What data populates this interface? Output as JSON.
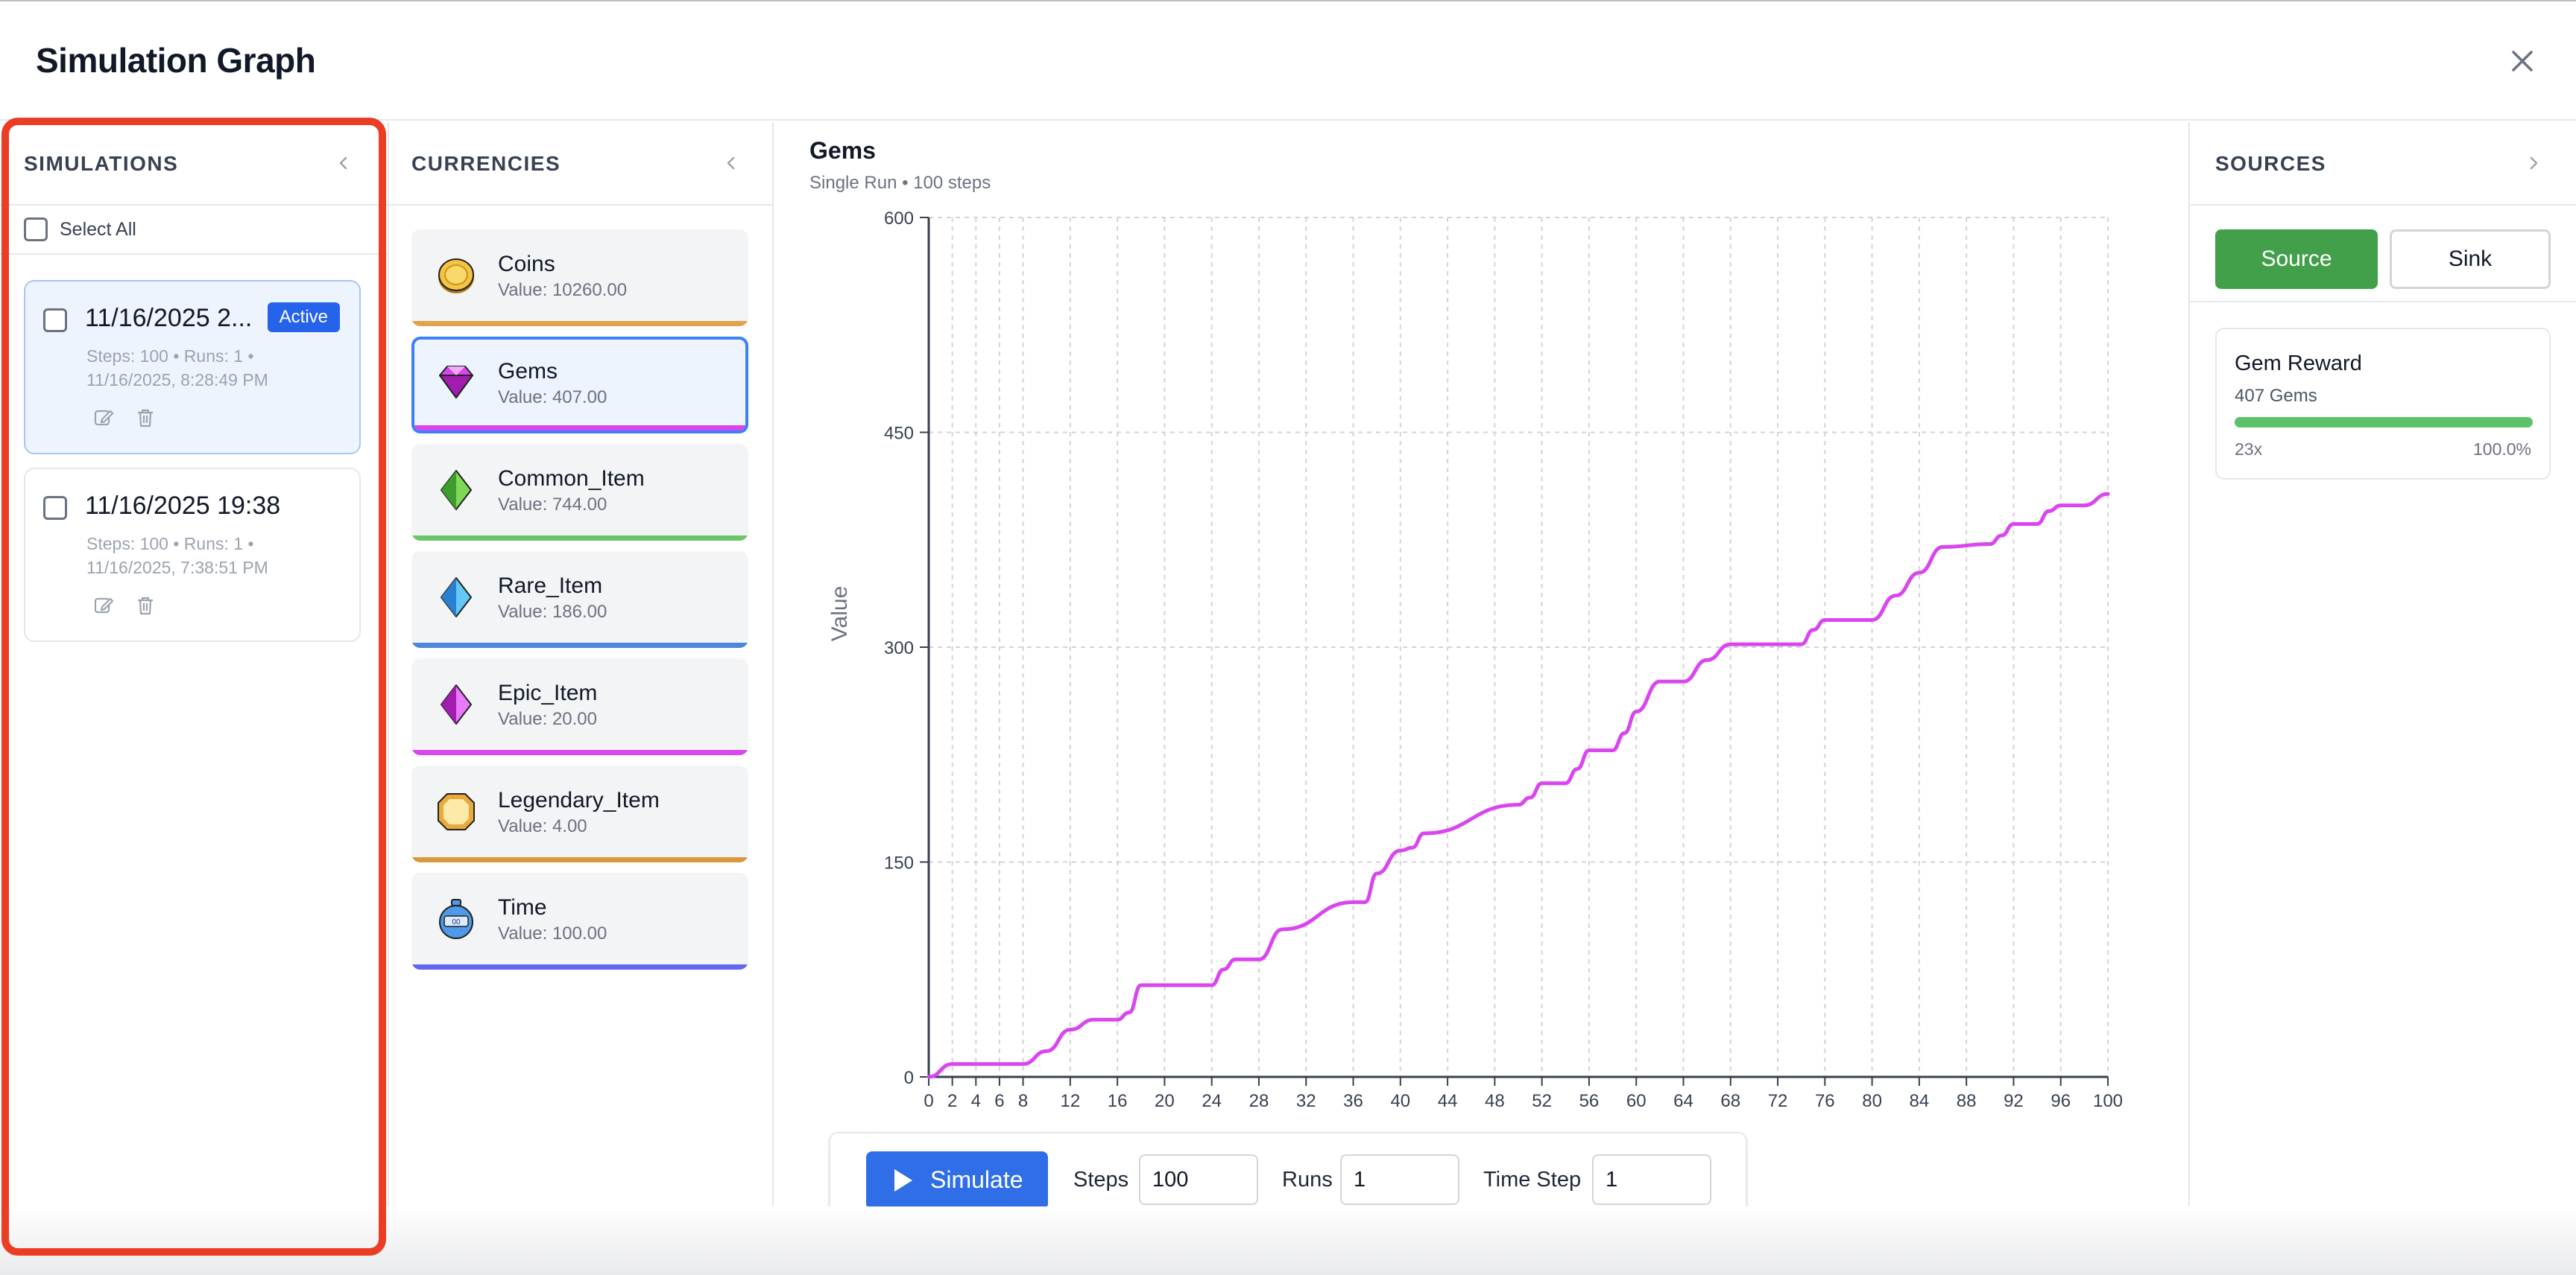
{
  "dialog": {
    "title": "Simulation Graph",
    "close_icon": "close-icon"
  },
  "simulations": {
    "heading": "SIMULATIONS",
    "select_all": "Select All",
    "items": [
      {
        "name": "11/16/2025 2...",
        "badge": "Active",
        "meta1": "Steps: 100 • Runs: 1 •",
        "meta2": "11/16/2025, 8:28:49 PM",
        "active": true
      },
      {
        "name": "11/16/2025 19:38",
        "badge": "",
        "meta1": "Steps: 100 • Runs: 1 •",
        "meta2": "11/16/2025, 7:38:51 PM",
        "active": false
      }
    ]
  },
  "currencies": {
    "heading": "CURRENCIES",
    "items": [
      {
        "name": "Coins",
        "value": "Value: 10260.00",
        "color": "#e0a24a",
        "icon": "coin-icon"
      },
      {
        "name": "Gems",
        "value": "Value: 407.00",
        "color": "#d946ef",
        "icon": "gem-icon",
        "selected": true
      },
      {
        "name": "Common_Item",
        "value": "Value: 744.00",
        "color": "#6cc667",
        "icon": "green-crystal-icon"
      },
      {
        "name": "Rare_Item",
        "value": "Value: 186.00",
        "color": "#4f86d9",
        "icon": "blue-crystal-icon"
      },
      {
        "name": "Epic_Item",
        "value": "Value: 20.00",
        "color": "#d946ef",
        "icon": "purple-crystal-icon"
      },
      {
        "name": "Legendary_Item",
        "value": "Value: 4.00",
        "color": "#d99a3e",
        "icon": "gold-octagon-icon"
      },
      {
        "name": "Time",
        "value": "Value: 100.00",
        "color": "#6366f1",
        "icon": "clock-icon"
      }
    ]
  },
  "chart": {
    "title": "Gems",
    "subtitle": "Single Run • 100 steps"
  },
  "chart_data": {
    "type": "line",
    "title": "Gems",
    "xlabel": "",
    "ylabel": "Value",
    "xlim": [
      0,
      100
    ],
    "ylim": [
      0,
      600
    ],
    "x_ticks": [
      0,
      2,
      4,
      6,
      8,
      12,
      16,
      20,
      24,
      28,
      32,
      36,
      40,
      44,
      48,
      52,
      56,
      60,
      64,
      68,
      72,
      76,
      80,
      84,
      88,
      92,
      96,
      100
    ],
    "y_ticks": [
      0,
      150,
      300,
      450,
      600
    ],
    "grid": true,
    "color": "#d946ef",
    "series": [
      {
        "x": [
          0,
          2,
          8,
          10,
          12,
          14,
          16,
          17,
          18,
          24,
          25,
          26,
          28,
          30,
          36,
          37,
          38,
          40,
          41,
          42,
          50,
          51,
          52,
          54,
          55,
          56,
          58,
          59,
          60,
          62,
          64,
          66,
          68,
          74,
          75,
          76,
          80,
          82,
          84,
          86,
          90,
          91,
          92,
          94,
          95,
          96,
          98,
          100
        ],
        "y": [
          0,
          9,
          9,
          18,
          33,
          40,
          40,
          45,
          64,
          64,
          75,
          82,
          82,
          103,
          122,
          122,
          142,
          158,
          160,
          170,
          190,
          195,
          205,
          205,
          215,
          228,
          228,
          240,
          255,
          276,
          276,
          291,
          302,
          302,
          312,
          319,
          319,
          336,
          352,
          370,
          372,
          378,
          386,
          386,
          395,
          399,
          399,
          407
        ]
      }
    ]
  },
  "controls": {
    "simulate": "Simulate",
    "steps_label": "Steps",
    "steps_value": "100",
    "runs_label": "Runs",
    "runs_value": "1",
    "timestep_label": "Time Step",
    "timestep_value": "1"
  },
  "sources": {
    "heading": "SOURCES",
    "source_btn": "Source",
    "sink_btn": "Sink",
    "card": {
      "title": "Gem Reward",
      "amount": "407 Gems",
      "count": "23x",
      "percent": "100.0%",
      "fill": 1.0,
      "bar_color": "#5cc26a"
    }
  }
}
